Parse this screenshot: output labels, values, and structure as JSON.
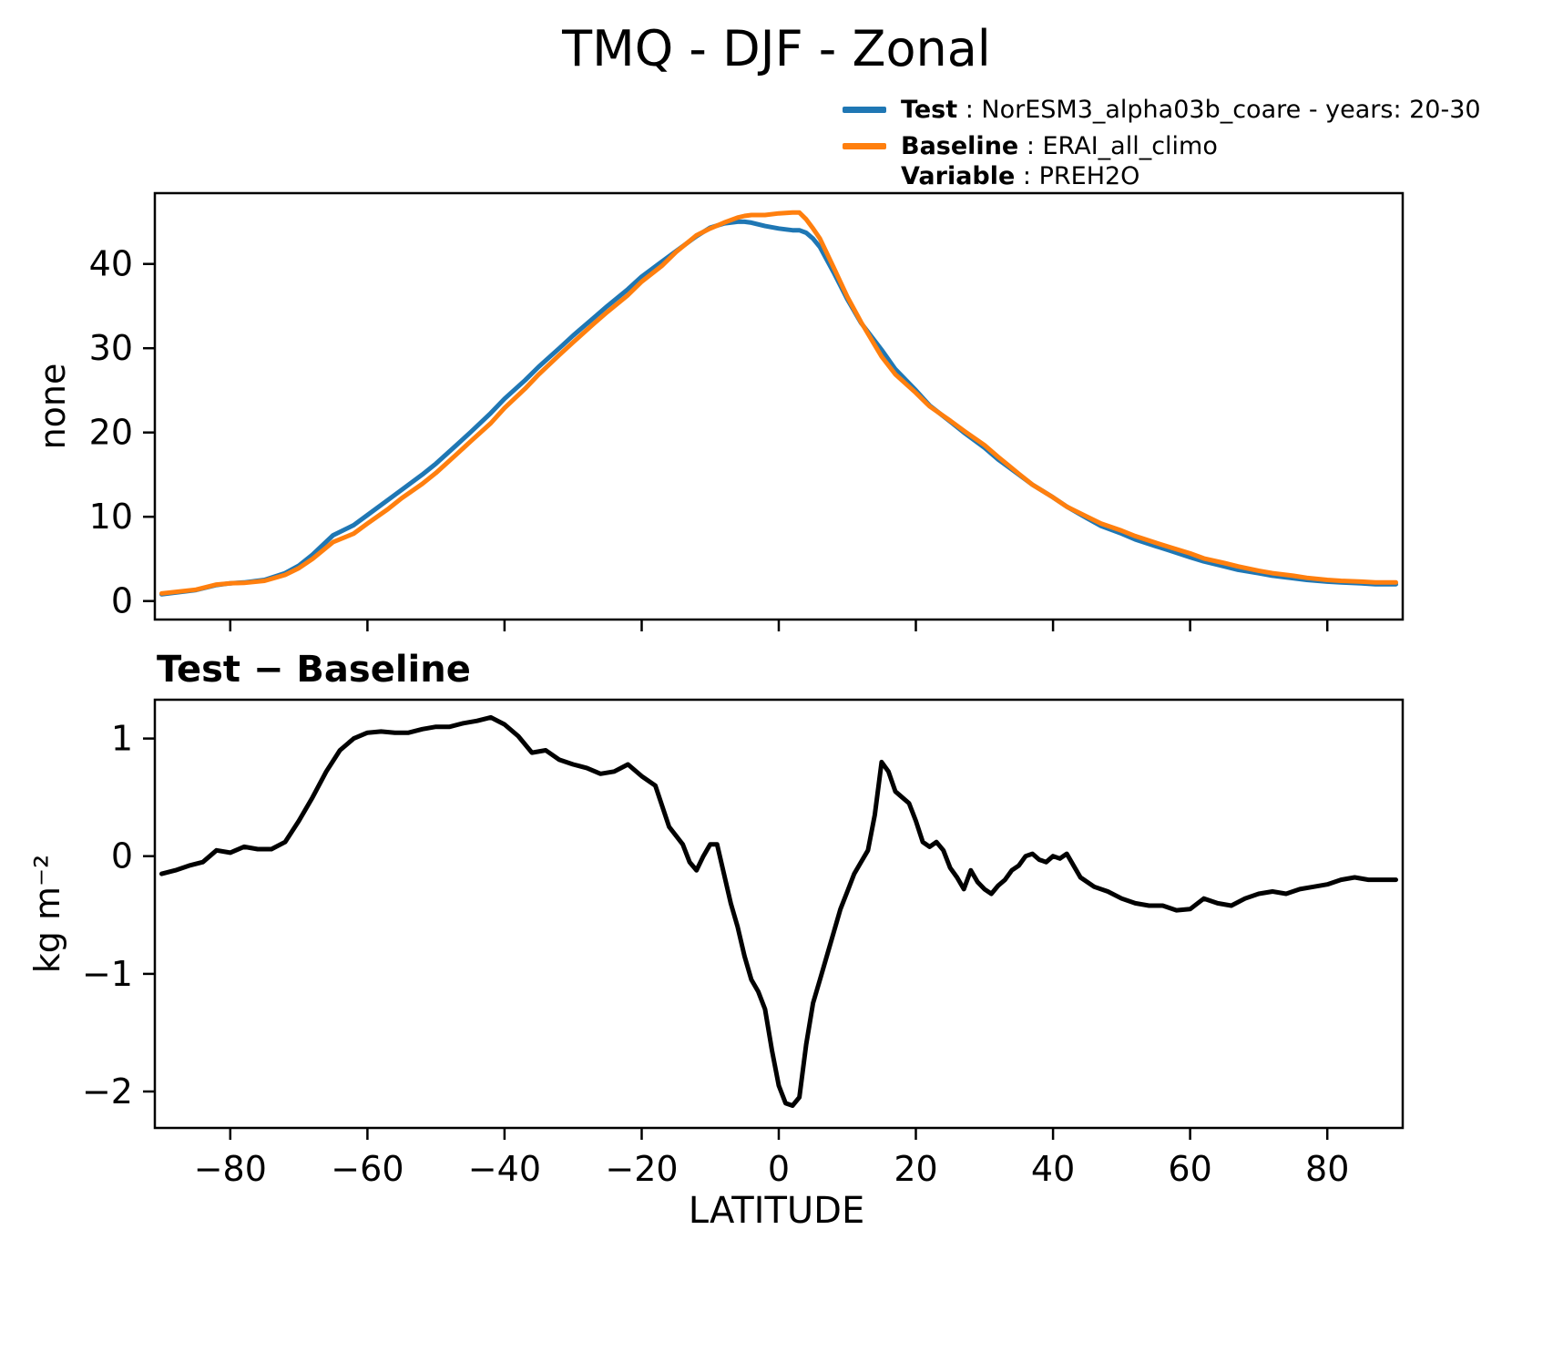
{
  "title": "TMQ - DJF - Zonal",
  "legend": {
    "test": {
      "label": "Test",
      "desc": " : NorESM3_alpha03b_coare - years: 20-30",
      "color": "#1f77b4"
    },
    "baseline": {
      "label": "Baseline",
      "desc": " : ERAI_all_climo",
      "color": "#ff7f0e"
    },
    "variable": {
      "label": "Variable",
      "desc": " : PREH2O"
    }
  },
  "panels": {
    "top": {
      "ylabel": "none"
    },
    "bottom": {
      "title": "Test − Baseline",
      "ylabel": "kg m⁻²",
      "xlabel": "LATITUDE"
    }
  },
  "chart_data": [
    {
      "type": "line",
      "title": "TMQ - DJF - Zonal",
      "ylabel": "none",
      "xlabel": "",
      "xlim": [
        -91,
        91
      ],
      "ylim": [
        -2.2,
        48.4
      ],
      "xticks": [
        -80,
        -60,
        -40,
        -20,
        0,
        20,
        40,
        60,
        80
      ],
      "yticks": [
        0,
        10,
        20,
        30,
        40
      ],
      "grid": false,
      "legend_position": "upper right",
      "x": [
        -90,
        -85,
        -82,
        -80,
        -78,
        -75,
        -72,
        -70,
        -68,
        -65,
        -62,
        -60,
        -57,
        -55,
        -52,
        -50,
        -47,
        -45,
        -42,
        -40,
        -37,
        -35,
        -32,
        -30,
        -27,
        -25,
        -22,
        -20,
        -17,
        -15,
        -12,
        -10,
        -8,
        -6,
        -5,
        -4,
        -2,
        0,
        2,
        3,
        4,
        5,
        6,
        8,
        10,
        12,
        15,
        17,
        20,
        22,
        25,
        27,
        30,
        32,
        35,
        37,
        40,
        42,
        45,
        47,
        50,
        52,
        55,
        57,
        60,
        62,
        65,
        67,
        70,
        72,
        75,
        77,
        80,
        82,
        85,
        87,
        90
      ],
      "series": [
        {
          "name": "Test",
          "color": "#1f77b4",
          "values": [
            0.8,
            1.3,
            1.9,
            2.1,
            2.2,
            2.5,
            3.3,
            4.2,
            5.5,
            7.8,
            9.0,
            10.2,
            12.0,
            13.2,
            15.0,
            16.3,
            18.5,
            20.0,
            22.3,
            24.0,
            26.2,
            27.8,
            30.0,
            31.5,
            33.6,
            35.0,
            37.0,
            38.5,
            40.3,
            41.5,
            43.3,
            44.3,
            44.8,
            45.0,
            45.0,
            44.9,
            44.5,
            44.2,
            44.0,
            44.0,
            43.7,
            43.0,
            42.0,
            39.0,
            35.8,
            33.0,
            29.8,
            27.5,
            25.0,
            23.2,
            21.3,
            20.0,
            18.2,
            16.8,
            15.0,
            13.8,
            12.3,
            11.2,
            9.8,
            8.9,
            8.0,
            7.3,
            6.5,
            6.0,
            5.2,
            4.7,
            4.1,
            3.7,
            3.3,
            3.0,
            2.7,
            2.5,
            2.3,
            2.2,
            2.1,
            2.0,
            2.0
          ]
        },
        {
          "name": "Baseline",
          "color": "#ff7f0e",
          "values": [
            0.9,
            1.35,
            1.95,
            2.1,
            2.15,
            2.4,
            3.1,
            3.9,
            5.0,
            7.0,
            8.0,
            9.2,
            10.9,
            12.2,
            13.9,
            15.2,
            17.4,
            18.9,
            21.1,
            22.9,
            25.2,
            26.9,
            29.2,
            30.7,
            32.9,
            34.3,
            36.3,
            37.9,
            39.8,
            41.4,
            43.4,
            44.2,
            44.9,
            45.5,
            45.7,
            45.8,
            45.8,
            46.0,
            46.1,
            46.1,
            45.3,
            44.2,
            43.0,
            39.6,
            36.1,
            33.1,
            29.0,
            26.9,
            24.7,
            23.1,
            21.4,
            20.2,
            18.5,
            17.1,
            15.1,
            13.8,
            12.3,
            11.2,
            10.0,
            9.2,
            8.35,
            7.7,
            6.9,
            6.4,
            5.65,
            5.05,
            4.5,
            4.1,
            3.6,
            3.3,
            3.0,
            2.75,
            2.5,
            2.4,
            2.3,
            2.2,
            2.2
          ]
        }
      ]
    },
    {
      "type": "line",
      "title": "Test − Baseline",
      "ylabel": "kg m⁻²",
      "xlabel": "LATITUDE",
      "xlim": [
        -91,
        91
      ],
      "ylim": [
        -2.31,
        1.33
      ],
      "xticks": [
        -80,
        -60,
        -40,
        -20,
        0,
        20,
        40,
        60,
        80
      ],
      "yticks": [
        -2,
        -1,
        0,
        1
      ],
      "grid": false,
      "x": [
        -90,
        -88,
        -86,
        -84,
        -82,
        -80,
        -78,
        -76,
        -74,
        -72,
        -70,
        -68,
        -66,
        -64,
        -62,
        -60,
        -58,
        -56,
        -54,
        -52,
        -50,
        -48,
        -46,
        -44,
        -42,
        -40,
        -38,
        -36,
        -34,
        -32,
        -30,
        -28,
        -26,
        -24,
        -22,
        -20,
        -18,
        -16,
        -14,
        -13,
        -12,
        -11,
        -10,
        -9,
        -8,
        -7,
        -6,
        -5,
        -4,
        -3,
        -2,
        -1,
        0,
        1,
        2,
        3,
        4,
        5,
        6,
        7,
        8,
        9,
        10,
        11,
        12,
        13,
        14,
        15,
        16,
        17,
        18,
        19,
        20,
        21,
        22,
        23,
        24,
        25,
        26,
        27,
        28,
        29,
        30,
        31,
        32,
        33,
        34,
        35,
        36,
        37,
        38,
        39,
        40,
        41,
        42,
        43,
        44,
        46,
        48,
        50,
        52,
        54,
        56,
        58,
        60,
        62,
        64,
        66,
        68,
        70,
        72,
        74,
        76,
        78,
        80,
        82,
        84,
        86,
        88,
        90
      ],
      "series": [
        {
          "name": "Test minus Baseline",
          "color": "#000000",
          "values": [
            -0.15,
            -0.12,
            -0.08,
            -0.05,
            0.05,
            0.03,
            0.08,
            0.06,
            0.06,
            0.12,
            0.3,
            0.5,
            0.72,
            0.9,
            1.0,
            1.05,
            1.06,
            1.05,
            1.05,
            1.08,
            1.1,
            1.1,
            1.13,
            1.15,
            1.18,
            1.12,
            1.02,
            0.88,
            0.9,
            0.82,
            0.78,
            0.75,
            0.7,
            0.72,
            0.78,
            0.68,
            0.6,
            0.25,
            0.1,
            -0.05,
            -0.12,
            0.0,
            0.1,
            0.1,
            -0.15,
            -0.4,
            -0.6,
            -0.85,
            -1.05,
            -1.15,
            -1.3,
            -1.65,
            -1.95,
            -2.1,
            -2.12,
            -2.05,
            -1.6,
            -1.25,
            -1.05,
            -0.85,
            -0.65,
            -0.45,
            -0.3,
            -0.15,
            -0.05,
            0.05,
            0.35,
            0.8,
            0.72,
            0.55,
            0.5,
            0.45,
            0.3,
            0.12,
            0.08,
            0.12,
            0.05,
            -0.1,
            -0.18,
            -0.28,
            -0.12,
            -0.22,
            -0.28,
            -0.32,
            -0.25,
            -0.2,
            -0.12,
            -0.08,
            0.0,
            0.02,
            -0.03,
            -0.05,
            0.0,
            -0.02,
            0.02,
            -0.08,
            -0.18,
            -0.26,
            -0.3,
            -0.36,
            -0.4,
            -0.42,
            -0.42,
            -0.46,
            -0.45,
            -0.36,
            -0.4,
            -0.42,
            -0.36,
            -0.32,
            -0.3,
            -0.32,
            -0.28,
            -0.26,
            -0.24,
            -0.2,
            -0.18,
            -0.2,
            -0.2,
            -0.2
          ]
        }
      ]
    }
  ]
}
